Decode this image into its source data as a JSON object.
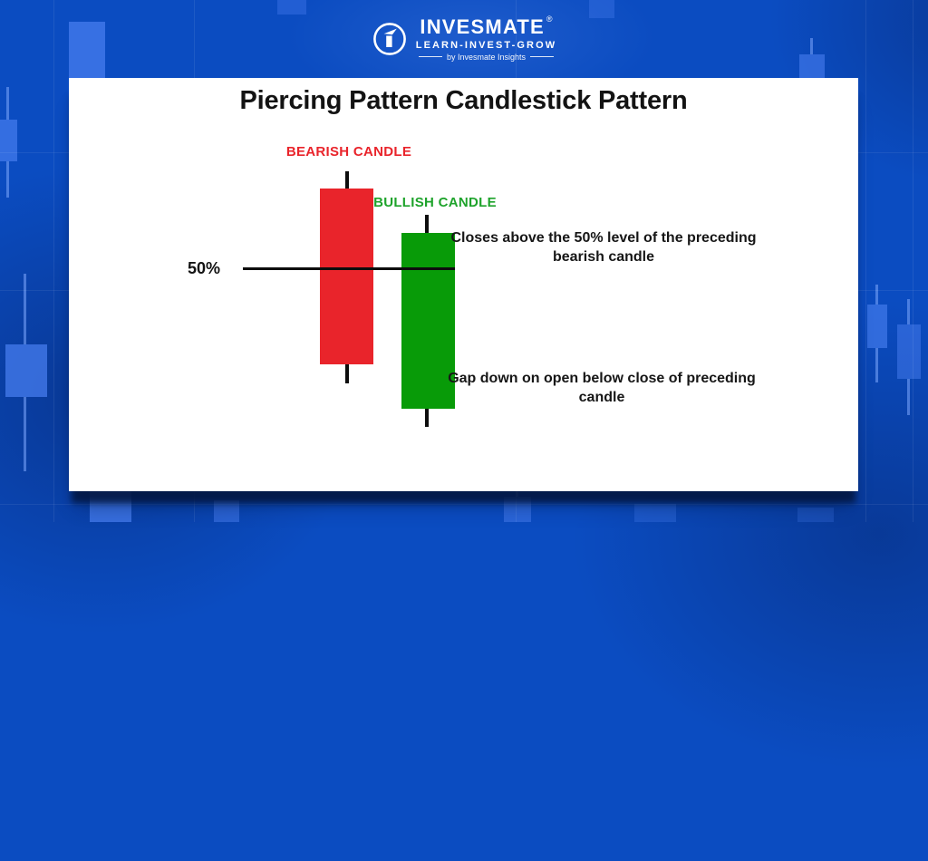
{
  "brand": {
    "icon": "invesmate-logo-icon",
    "name": "INVESMATE",
    "registered_mark": "®",
    "tagline": "LEARN-INVEST-GROW",
    "byline": "by Invesmate Insights"
  },
  "diagram": {
    "title": "Piercing Pattern Candlestick Pattern",
    "bearish_label": "BEARISH CANDLE",
    "bullish_label": "BULLISH CANDLE",
    "level_label": "50%",
    "close_note": "Closes above the 50% level of the preceding bearish candle",
    "gap_note": "Gap down on open below close of preceding candle"
  },
  "colors": {
    "bearish_red": "#e9242b",
    "bullish_green": "#089b08",
    "bullish_label_green": "#1ea32b",
    "bearish_label_red": "#e8252c",
    "background_blue": "#0b4cc1",
    "card_white": "#ffffff",
    "ink_black": "#131313"
  },
  "chart_data": {
    "type": "candlestick",
    "title": "Piercing Pattern Candlestick Pattern",
    "description": "A bearish candle followed by a bullish candle that gaps down on open below the prior close, then closes above the 50% level of the preceding bearish candle body",
    "reference_line": {
      "label": "50%",
      "value": 60,
      "meaning": "50% retracement level of the bearish candle body"
    },
    "candles": [
      {
        "name": "bearish candle",
        "direction": "down",
        "open": 94,
        "high": 100,
        "low": 17,
        "close": 25
      },
      {
        "name": "bullish candle",
        "direction": "up",
        "open": 7,
        "high": 83,
        "low": 0,
        "close": 76
      }
    ]
  }
}
